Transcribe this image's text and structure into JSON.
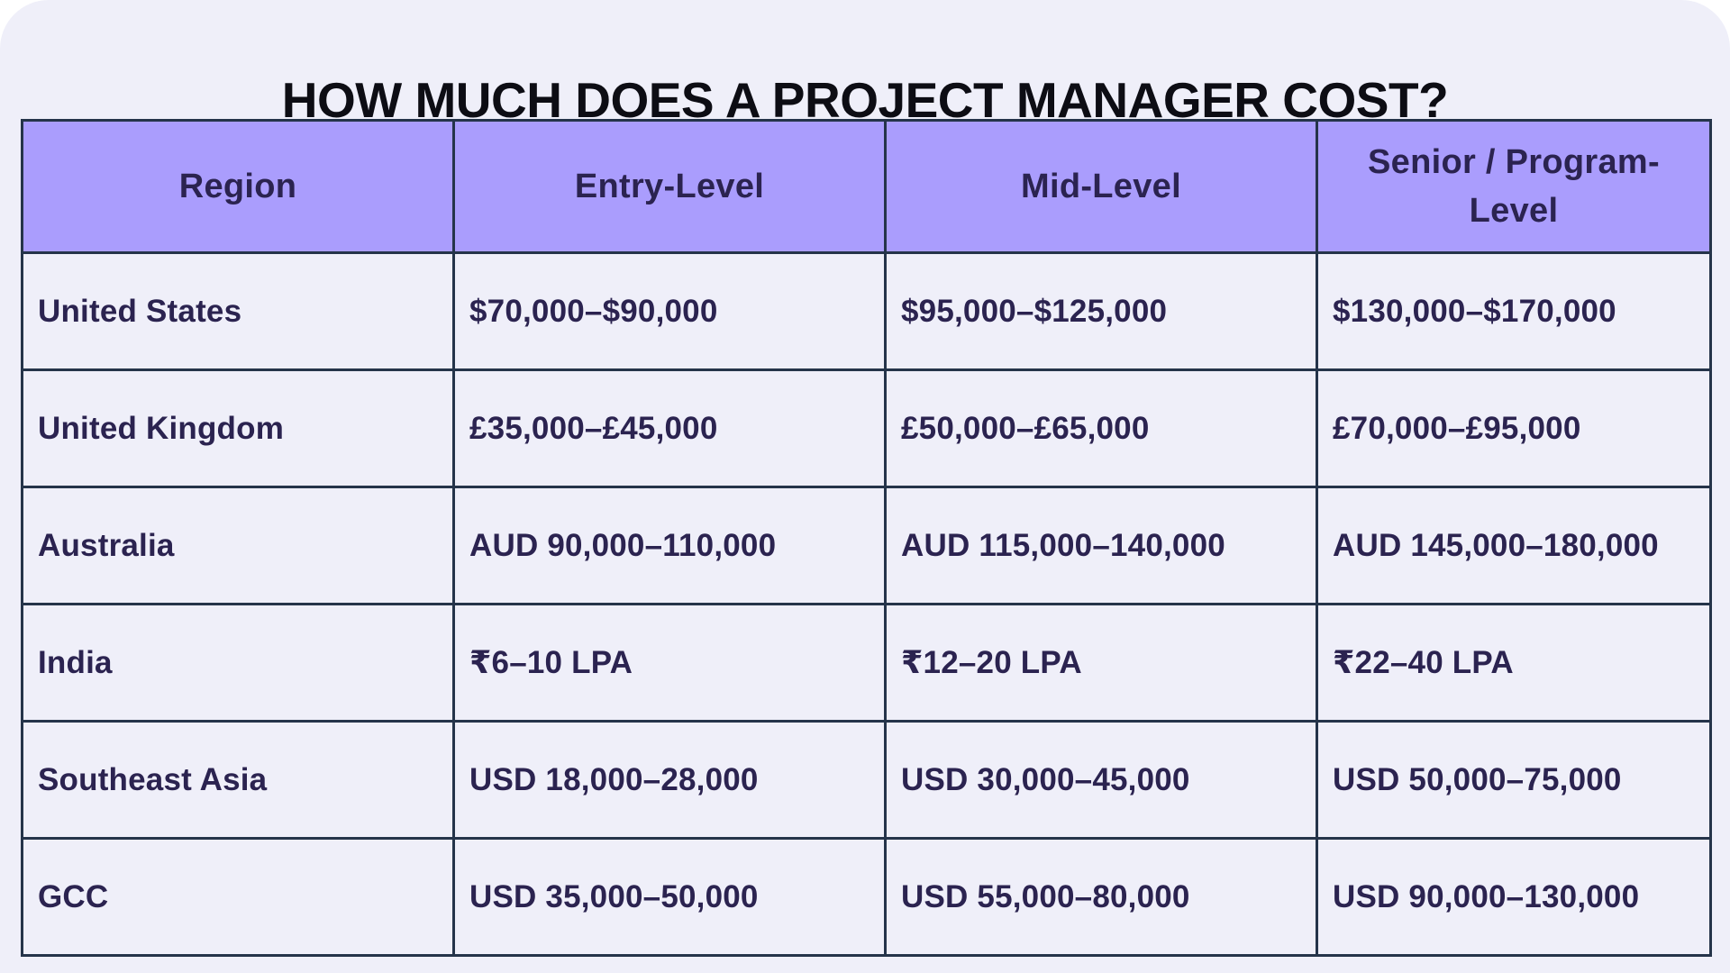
{
  "title": "HOW MUCH DOES A PROJECT MANAGER COST?",
  "colors": {
    "page_background": "#efeff9",
    "header_background": "#aa9dfd",
    "border": "#25344a",
    "text": "#2b2350",
    "title_text": "#0d0d14"
  },
  "table": {
    "headers": [
      "Region",
      "Entry-Level",
      "Mid-Level",
      "Senior / Program-Level"
    ],
    "rows": [
      [
        "United States",
        "$70,000–$90,000",
        "$95,000–$125,000",
        "$130,000–$170,000"
      ],
      [
        "United Kingdom",
        "£35,000–£45,000",
        "£50,000–£65,000",
        "£70,000–£95,000"
      ],
      [
        "Australia",
        "AUD 90,000–110,000",
        "AUD 115,000–140,000",
        "AUD 145,000–180,000"
      ],
      [
        "India",
        "₹6–10 LPA",
        "₹12–20 LPA",
        "₹22–40 LPA"
      ],
      [
        "Southeast Asia",
        "USD 18,000–28,000",
        "USD 30,000–45,000",
        "USD 50,000–75,000"
      ],
      [
        "GCC",
        "USD 35,000–50,000",
        "USD 55,000–80,000",
        "USD 90,000–130,000"
      ]
    ]
  }
}
